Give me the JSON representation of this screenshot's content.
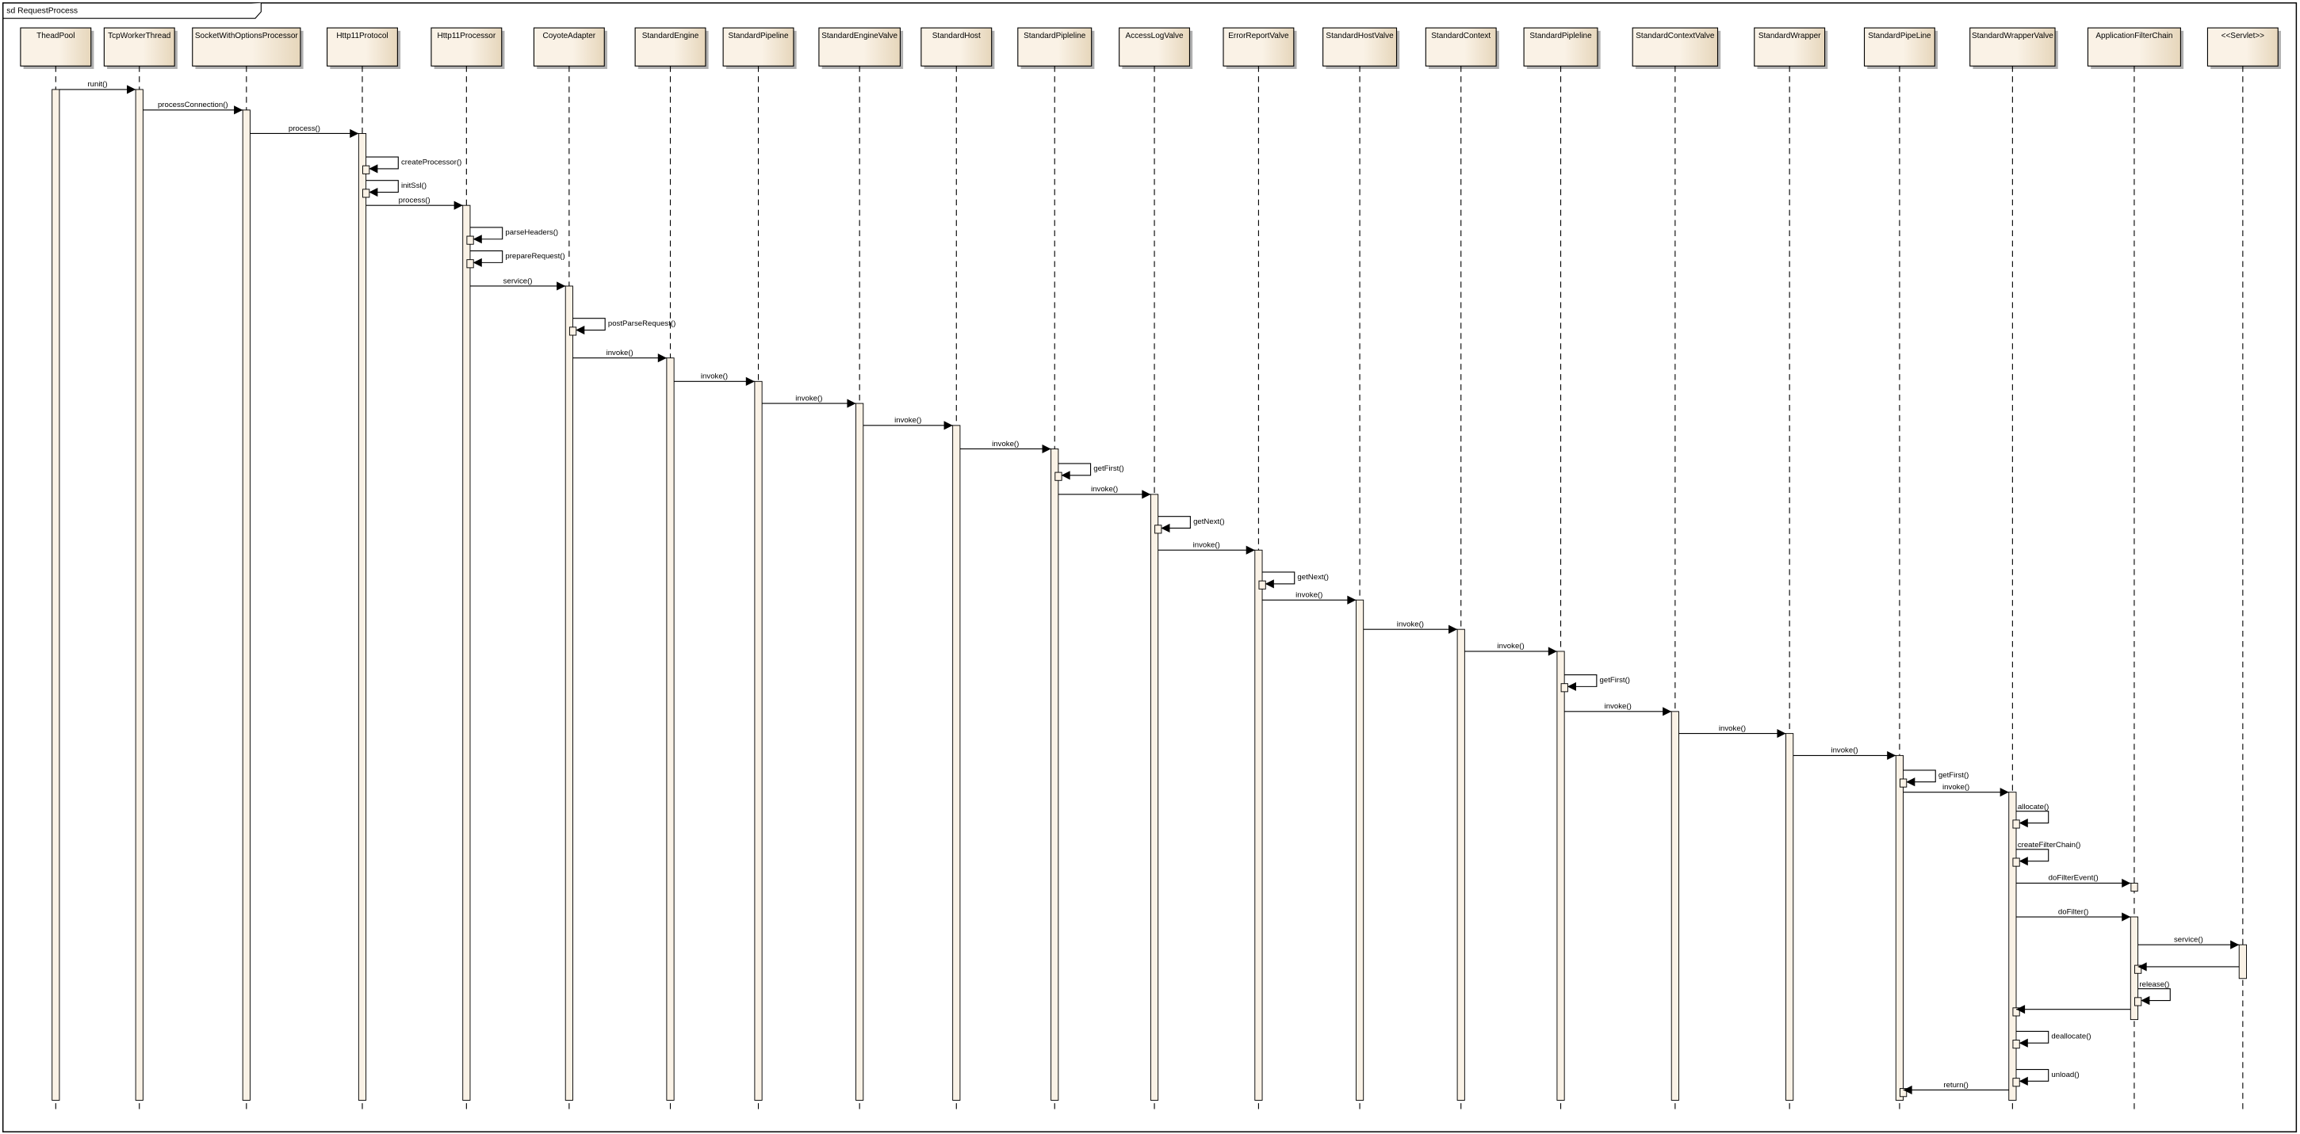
{
  "frame": {
    "title": "sd RequestProcess"
  },
  "colors": {
    "box_light": "#faf2e6",
    "box_dark": "#e6d6bb",
    "shadow": "#b0b0b0",
    "line": "#000000"
  },
  "lifelines": [
    "TheadPool",
    "TcpWorkerThread",
    "SocketWithOptionsProcessor",
    "Http11Protocol",
    "Http11Processor",
    "CoyoteAdapter",
    "StandardEngine",
    "StandardPipeline",
    "StandardEngineValve",
    "StandardHost",
    "StandardPipleline",
    "AccessLogValve",
    "ErrorReportValve",
    "StandardHostValve",
    "StandardContext",
    "StandardPipleline",
    "StandardContextValve",
    "StandardWrapper",
    "StandardPipeLine",
    "StandardWrapperValve",
    "ApplicationFilterChain",
    "<<Servlet>>"
  ],
  "messages": [
    {
      "from": 0,
      "to": 1,
      "label": "runit()"
    },
    {
      "from": 1,
      "to": 2,
      "label": "processConnection()"
    },
    {
      "from": 2,
      "to": 3,
      "label": "process()"
    },
    {
      "from": 3,
      "to": 3,
      "label": "createProcessor()"
    },
    {
      "from": 3,
      "to": 3,
      "label": "initSsl()"
    },
    {
      "from": 3,
      "to": 4,
      "label": "process()"
    },
    {
      "from": 4,
      "to": 4,
      "label": "parseHeaders()"
    },
    {
      "from": 4,
      "to": 4,
      "label": "prepareRequest()"
    },
    {
      "from": 4,
      "to": 5,
      "label": "service()"
    },
    {
      "from": 5,
      "to": 5,
      "label": "postParseRequest()"
    },
    {
      "from": 5,
      "to": 6,
      "label": "invoke()"
    },
    {
      "from": 6,
      "to": 7,
      "label": "invoke()"
    },
    {
      "from": 7,
      "to": 8,
      "label": "invoke()"
    },
    {
      "from": 8,
      "to": 9,
      "label": "invoke()"
    },
    {
      "from": 9,
      "to": 10,
      "label": "invoke()"
    },
    {
      "from": 10,
      "to": 10,
      "label": "getFirst()"
    },
    {
      "from": 10,
      "to": 11,
      "label": "invoke()"
    },
    {
      "from": 11,
      "to": 11,
      "label": "getNext()"
    },
    {
      "from": 11,
      "to": 12,
      "label": "invoke()"
    },
    {
      "from": 12,
      "to": 12,
      "label": "getNext()"
    },
    {
      "from": 12,
      "to": 13,
      "label": "invoke()"
    },
    {
      "from": 13,
      "to": 14,
      "label": "invoke()"
    },
    {
      "from": 14,
      "to": 15,
      "label": "invoke()"
    },
    {
      "from": 15,
      "to": 15,
      "label": "getFirst()"
    },
    {
      "from": 15,
      "to": 16,
      "label": "invoke()"
    },
    {
      "from": 16,
      "to": 17,
      "label": "invoke()"
    },
    {
      "from": 17,
      "to": 18,
      "label": "invoke()"
    },
    {
      "from": 18,
      "to": 18,
      "label": "getFirst()"
    },
    {
      "from": 18,
      "to": 19,
      "label": "invoke()"
    },
    {
      "from": 19,
      "to": 19,
      "label": "allocate()"
    },
    {
      "from": 19,
      "to": 19,
      "label": "createFilterChain()"
    },
    {
      "from": 19,
      "to": 20,
      "label": "doFilterEvent()"
    },
    {
      "from": 19,
      "to": 20,
      "label": "doFilter()"
    },
    {
      "from": 20,
      "to": 21,
      "label": "service()"
    },
    {
      "from": 21,
      "to": 20,
      "label": ""
    },
    {
      "from": 20,
      "to": 20,
      "label": "release()"
    },
    {
      "from": 20,
      "to": 19,
      "label": ""
    },
    {
      "from": 19,
      "to": 19,
      "label": "deallocate()"
    },
    {
      "from": 19,
      "to": 19,
      "label": "unload()"
    },
    {
      "from": 19,
      "to": 18,
      "label": "return()"
    }
  ]
}
